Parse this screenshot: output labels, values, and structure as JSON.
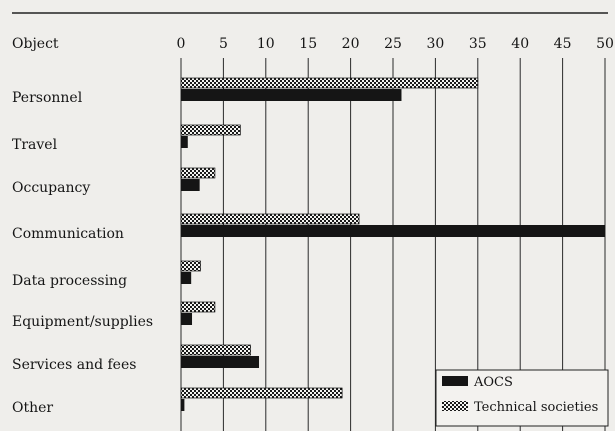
{
  "chart_data": {
    "type": "bar",
    "orientation": "horizontal",
    "category_header": "Object",
    "categories": [
      "Personnel",
      "Travel",
      "Occupancy",
      "Communication",
      "Data processing",
      "Equipment/supplies",
      "Services and fees",
      "Other"
    ],
    "series": [
      {
        "name": "Technical societies",
        "values": [
          35,
          7,
          4,
          21,
          2.3,
          4,
          8.2,
          19
        ],
        "color": "#1a1a1a",
        "pattern": "checker"
      },
      {
        "name": "AOCS",
        "values": [
          26,
          0.8,
          2.2,
          50,
          1.2,
          1.3,
          9.2,
          0.4
        ],
        "color": "#151515",
        "pattern": "solid"
      }
    ],
    "x_ticks": [
      0,
      5,
      10,
      15,
      20,
      25,
      30,
      35,
      40,
      45,
      50
    ],
    "xlim": [
      0,
      50
    ],
    "grid": true,
    "legend_position": "bottom-right",
    "legend_order": [
      "AOCS",
      "Technical societies"
    ]
  }
}
